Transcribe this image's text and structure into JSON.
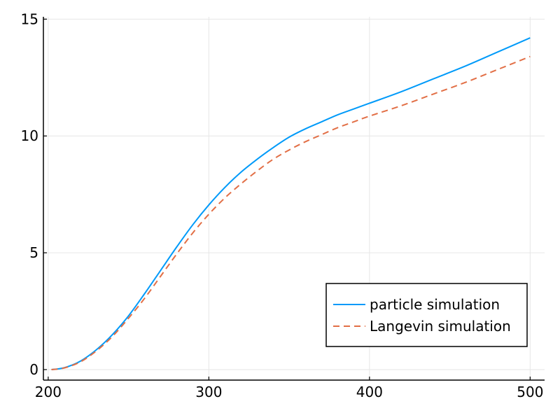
{
  "chart_data": {
    "type": "line",
    "title": "",
    "xlabel": "",
    "ylabel": "",
    "xlim": [
      197,
      509
    ],
    "ylim": [
      -0.45,
      15.1
    ],
    "xticks": [
      200,
      300,
      400,
      500
    ],
    "xtick_labels": [
      "200",
      "300",
      "400",
      "500"
    ],
    "yticks": [
      0,
      5,
      10,
      15
    ],
    "ytick_labels": [
      "0",
      "5",
      "10",
      "15"
    ],
    "grid": true,
    "legend": "bottom-right",
    "series": [
      {
        "name": "particle simulation",
        "color": "#009af9",
        "style": "solid",
        "x": [
          202,
          210,
          220,
          230,
          240,
          250,
          260,
          270,
          280,
          290,
          300,
          310,
          320,
          330,
          340,
          350,
          360,
          370,
          380,
          390,
          400,
          420,
          440,
          460,
          480,
          500
        ],
        "y": [
          0.0,
          0.08,
          0.36,
          0.85,
          1.5,
          2.3,
          3.25,
          4.25,
          5.25,
          6.2,
          7.05,
          7.8,
          8.45,
          9.0,
          9.5,
          9.95,
          10.3,
          10.6,
          10.9,
          11.15,
          11.4,
          11.9,
          12.45,
          13.0,
          13.6,
          14.2
        ]
      },
      {
        "name": "Langevin simulation",
        "color": "#e26f46",
        "style": "dashed",
        "x": [
          202,
          210,
          220,
          230,
          240,
          250,
          260,
          270,
          280,
          290,
          300,
          310,
          320,
          330,
          340,
          350,
          360,
          370,
          380,
          390,
          400,
          420,
          440,
          460,
          480,
          500
        ],
        "y": [
          0.0,
          0.07,
          0.33,
          0.8,
          1.42,
          2.2,
          3.05,
          4.0,
          4.95,
          5.85,
          6.65,
          7.35,
          7.95,
          8.5,
          9.0,
          9.4,
          9.75,
          10.05,
          10.35,
          10.6,
          10.85,
          11.3,
          11.8,
          12.3,
          12.85,
          13.4
        ]
      }
    ]
  }
}
